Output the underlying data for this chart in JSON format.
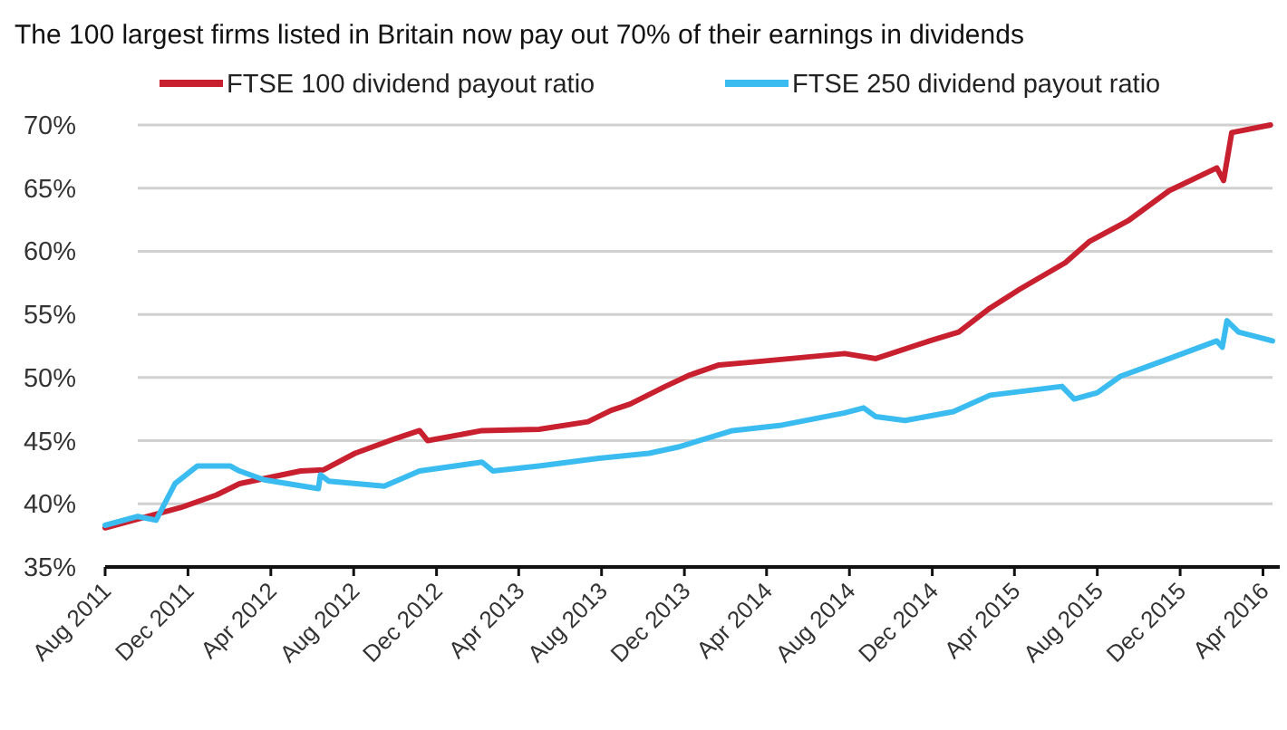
{
  "chart_data": {
    "type": "line",
    "subtitle": "The 100 largest firms listed in Britain now pay out 70% of their earnings in dividends",
    "xlim": [
      "2011-08-01",
      "2016-04-15"
    ],
    "xticks": [
      {
        "value": "2011-08-01",
        "label": "Aug 2011"
      },
      {
        "value": "2011-12-01",
        "label": "Dec 2011"
      },
      {
        "value": "2012-04-01",
        "label": "Apr 2012"
      },
      {
        "value": "2012-08-01",
        "label": "Aug 2012"
      },
      {
        "value": "2012-12-01",
        "label": "Dec 2012"
      },
      {
        "value": "2013-04-01",
        "label": "Apr 2013"
      },
      {
        "value": "2013-08-01",
        "label": "Aug 2013"
      },
      {
        "value": "2013-12-01",
        "label": "Dec 2013"
      },
      {
        "value": "2014-04-01",
        "label": "Apr 2014"
      },
      {
        "value": "2014-08-01",
        "label": "Aug 2014"
      },
      {
        "value": "2014-12-01",
        "label": "Dec 2014"
      },
      {
        "value": "2015-04-01",
        "label": "Apr 2015"
      },
      {
        "value": "2015-08-01",
        "label": "Aug 2015"
      },
      {
        "value": "2015-12-01",
        "label": "Dec 2015"
      },
      {
        "value": "2016-04-01",
        "label": "Apr 2016"
      }
    ],
    "ylim": [
      35,
      70
    ],
    "yticks": [
      {
        "value": 35,
        "label": "35%"
      },
      {
        "value": 40,
        "label": "40%"
      },
      {
        "value": 45,
        "label": "45%"
      },
      {
        "value": 50,
        "label": "50%"
      },
      {
        "value": 55,
        "label": "55%"
      },
      {
        "value": 60,
        "label": "60%"
      },
      {
        "value": 65,
        "label": "65%"
      },
      {
        "value": 70,
        "label": "70%"
      }
    ],
    "grid": "y",
    "legend": "top",
    "marker": "none",
    "line_style": "solid",
    "series": [
      {
        "name": "FTSE 100 dividend payout ratio",
        "color": "#c8202f",
        "x": [
          "2011-08-01",
          "2011-11-20",
          "2012-01-12",
          "2012-02-15",
          "2012-05-15",
          "2012-06-18",
          "2012-08-03",
          "2012-10-03",
          "2012-11-06",
          "2012-11-18",
          "2013-02-06",
          "2013-05-01",
          "2013-07-12",
          "2013-08-15",
          "2013-09-12",
          "2013-11-03",
          "2013-12-09",
          "2014-01-21",
          "2014-03-06",
          "2014-07-25",
          "2014-09-09",
          "2014-11-27",
          "2015-01-09",
          "2015-02-24",
          "2015-04-09",
          "2015-06-15",
          "2015-07-21",
          "2015-09-15",
          "2015-11-15",
          "2016-01-24",
          "2016-02-03",
          "2016-02-15",
          "2016-04-12"
        ],
        "values": [
          38.1,
          39.7,
          40.7,
          41.6,
          42.6,
          42.7,
          44.0,
          45.2,
          45.8,
          45.0,
          45.8,
          45.9,
          46.5,
          47.4,
          47.9,
          49.3,
          50.2,
          51.0,
          51.2,
          51.9,
          51.5,
          52.9,
          53.6,
          55.5,
          57.0,
          59.1,
          60.8,
          62.4,
          64.8,
          66.6,
          65.6,
          69.4,
          70.0
        ]
      },
      {
        "name": "FTSE 250 dividend payout ratio",
        "color": "#3bbcf0",
        "x": [
          "2011-08-01",
          "2011-09-18",
          "2011-10-15",
          "2011-11-12",
          "2011-12-15",
          "2012-02-01",
          "2012-02-15",
          "2012-03-22",
          "2012-06-10",
          "2012-06-13",
          "2012-06-25",
          "2012-09-15",
          "2012-11-06",
          "2013-02-06",
          "2013-02-22",
          "2013-05-01",
          "2013-07-28",
          "2013-10-10",
          "2013-11-22",
          "2014-02-10",
          "2014-04-20",
          "2014-07-25",
          "2014-08-22",
          "2014-09-09",
          "2014-10-22",
          "2015-01-01",
          "2015-02-24",
          "2015-06-10",
          "2015-06-28",
          "2015-08-01",
          "2015-09-04",
          "2015-11-15",
          "2016-01-24",
          "2016-02-01",
          "2016-02-08",
          "2016-02-25",
          "2016-04-15"
        ],
        "values": [
          38.3,
          39.0,
          38.7,
          41.6,
          43.0,
          43.0,
          42.6,
          41.9,
          41.2,
          42.3,
          41.8,
          41.4,
          42.6,
          43.3,
          42.6,
          43.0,
          43.6,
          44.0,
          44.5,
          45.8,
          46.2,
          47.2,
          47.6,
          46.9,
          46.6,
          47.3,
          48.6,
          49.3,
          48.3,
          48.8,
          50.1,
          51.5,
          52.9,
          52.4,
          54.5,
          53.6,
          52.9
        ]
      }
    ]
  }
}
